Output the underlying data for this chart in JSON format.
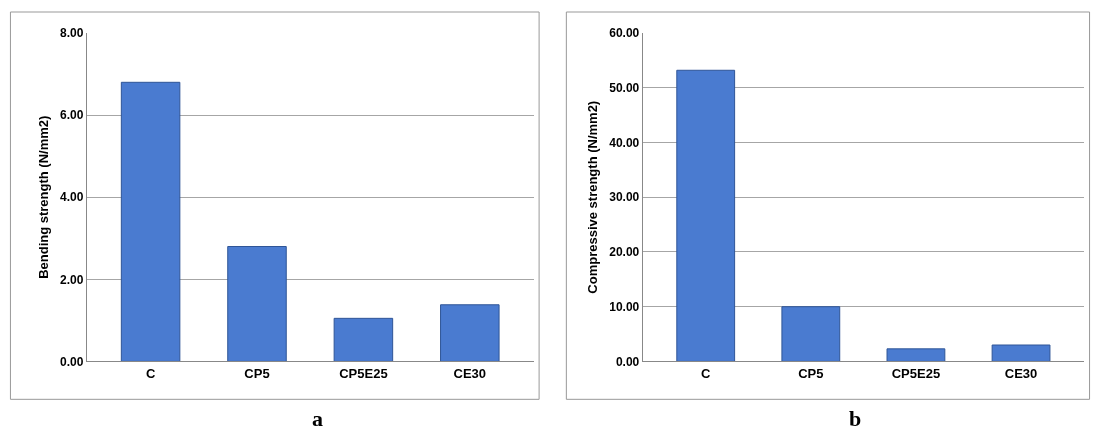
{
  "chart_data": [
    {
      "type": "bar",
      "ylabel": "Bending strength (N/mm2)",
      "categories": [
        "C",
        "CP5",
        "CP5E25",
        "CE30"
      ],
      "values": [
        6.8,
        2.8,
        1.05,
        1.38
      ],
      "color": "#4a7bd0",
      "ylim": [
        0,
        8
      ],
      "yticks": [
        {
          "value": 0,
          "label": "0.00"
        },
        {
          "value": 2,
          "label": "2.00"
        },
        {
          "value": 4,
          "label": "4.00"
        },
        {
          "value": 6,
          "label": "6.00"
        },
        {
          "value": 8,
          "label": "8.00"
        }
      ],
      "grid": "y",
      "annotations": [
        "a"
      ]
    },
    {
      "type": "bar",
      "ylabel": "Compressive strength (N/mm2)",
      "categories": [
        "C",
        "CP5",
        "CP5E25",
        "CE30"
      ],
      "values": [
        53.2,
        10.0,
        2.3,
        3.0
      ],
      "color": "#4a7bd0",
      "ylim": [
        0,
        60
      ],
      "yticks": [
        {
          "value": 0,
          "label": "0.00"
        },
        {
          "value": 10,
          "label": "10.00"
        },
        {
          "value": 20,
          "label": "20.00"
        },
        {
          "value": 30,
          "label": "30.00"
        },
        {
          "value": 40,
          "label": "40.00"
        },
        {
          "value": 50,
          "label": "50.00"
        },
        {
          "value": 60,
          "label": "60.00"
        }
      ],
      "grid": "y",
      "annotations": [
        "b"
      ]
    }
  ]
}
